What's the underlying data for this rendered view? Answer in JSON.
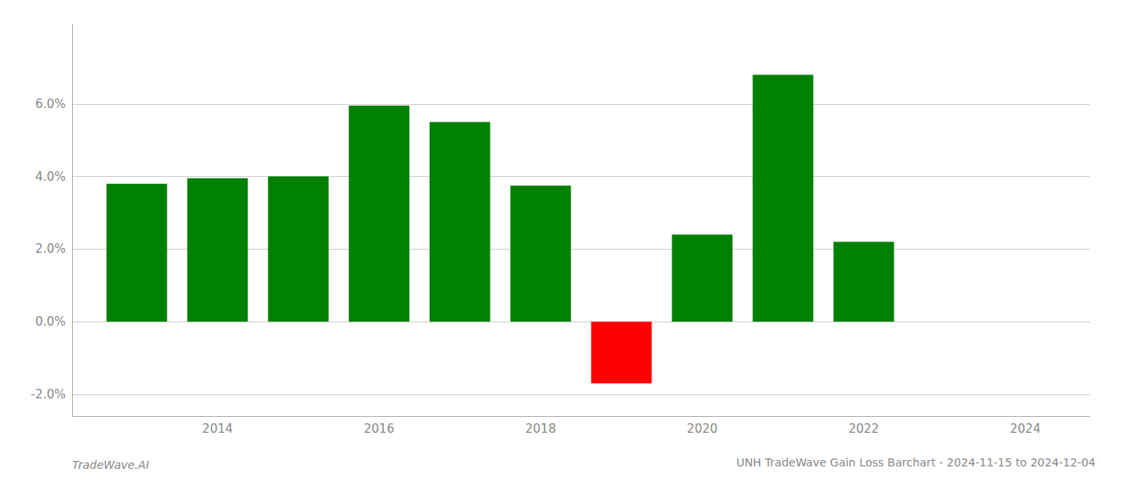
{
  "chart_data": {
    "type": "bar",
    "title": "UNH TradeWave Gain Loss Barchart - 2024-11-15 to 2024-12-04",
    "annotations": [
      "TradeWave.AI"
    ],
    "x": [
      2013,
      2014,
      2015,
      2016,
      2017,
      2018,
      2019,
      2020,
      2021,
      2022
    ],
    "values": [
      0.038,
      0.0395,
      0.04,
      0.0595,
      0.055,
      0.0375,
      -0.017,
      0.024,
      0.068,
      0.022
    ],
    "colors": [
      "#008000",
      "#008000",
      "#008000",
      "#008000",
      "#008000",
      "#008000",
      "#ff0000",
      "#008000",
      "#008000",
      "#008000"
    ],
    "xlim": [
      2012.2,
      2024.8
    ],
    "xticks": [
      2014,
      2016,
      2018,
      2020,
      2022,
      2024
    ],
    "ylim": [
      -0.026,
      0.082
    ],
    "yticks": [
      {
        "value": -0.02,
        "label": "-2.0%"
      },
      {
        "value": 0.0,
        "label": "0.0%"
      },
      {
        "value": 0.02,
        "label": "2.0%"
      },
      {
        "value": 0.04,
        "label": "4.0%"
      },
      {
        "value": 0.06,
        "label": "6.0%"
      }
    ],
    "grid": true
  }
}
